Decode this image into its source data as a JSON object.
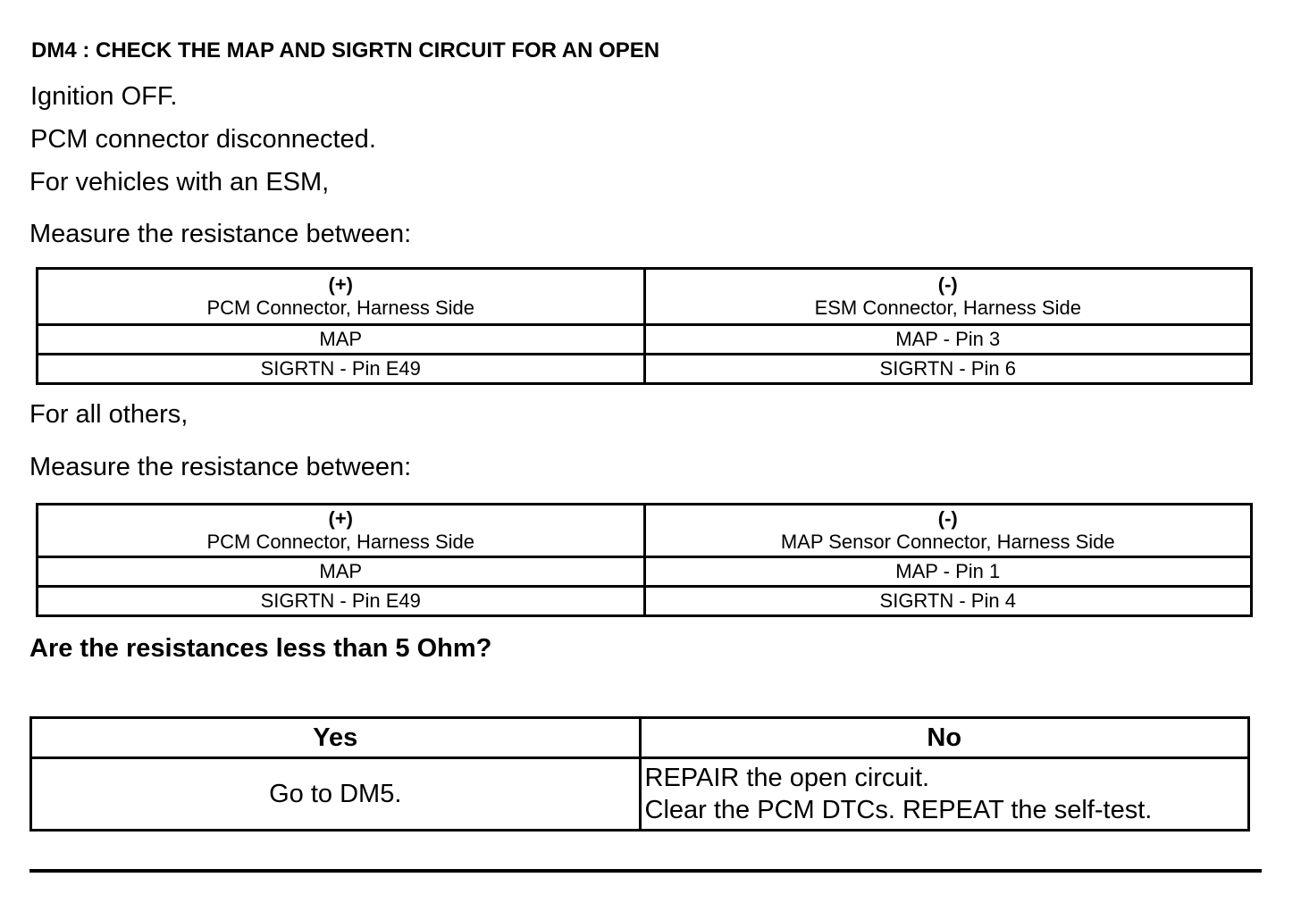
{
  "title": "DM4 : CHECK THE MAP AND SIGRTN CIRCUIT FOR AN OPEN",
  "steps": [
    "Ignition OFF.",
    "PCM connector disconnected.",
    "For vehicles with an ESM,",
    "Measure the resistance between:"
  ],
  "table_esm": {
    "header": [
      {
        "sign": "(+)",
        "label": "PCM Connector, Harness Side"
      },
      {
        "sign": "(-)",
        "label": "ESM Connector, Harness Side"
      }
    ],
    "rows": [
      [
        "MAP",
        "MAP - Pin 3"
      ],
      [
        "SIGRTN - Pin E49",
        "SIGRTN - Pin 6"
      ]
    ]
  },
  "others": [
    "For all others,",
    "Measure the resistance between:"
  ],
  "table_others": {
    "header": [
      {
        "sign": "(+)",
        "label": "PCM Connector, Harness Side"
      },
      {
        "sign": "(-)",
        "label": "MAP Sensor Connector, Harness Side"
      }
    ],
    "rows": [
      [
        "MAP",
        "MAP - Pin 1"
      ],
      [
        "SIGRTN - Pin E49",
        "SIGRTN - Pin 4"
      ]
    ]
  },
  "question": "Are the resistances less than 5 Ohm?",
  "answer": {
    "yes_label": "Yes",
    "no_label": "No",
    "yes_text": "Go to DM5.",
    "no_text": [
      "REPAIR the open circuit.",
      "Clear the PCM DTCs. REPEAT the self-test."
    ]
  }
}
